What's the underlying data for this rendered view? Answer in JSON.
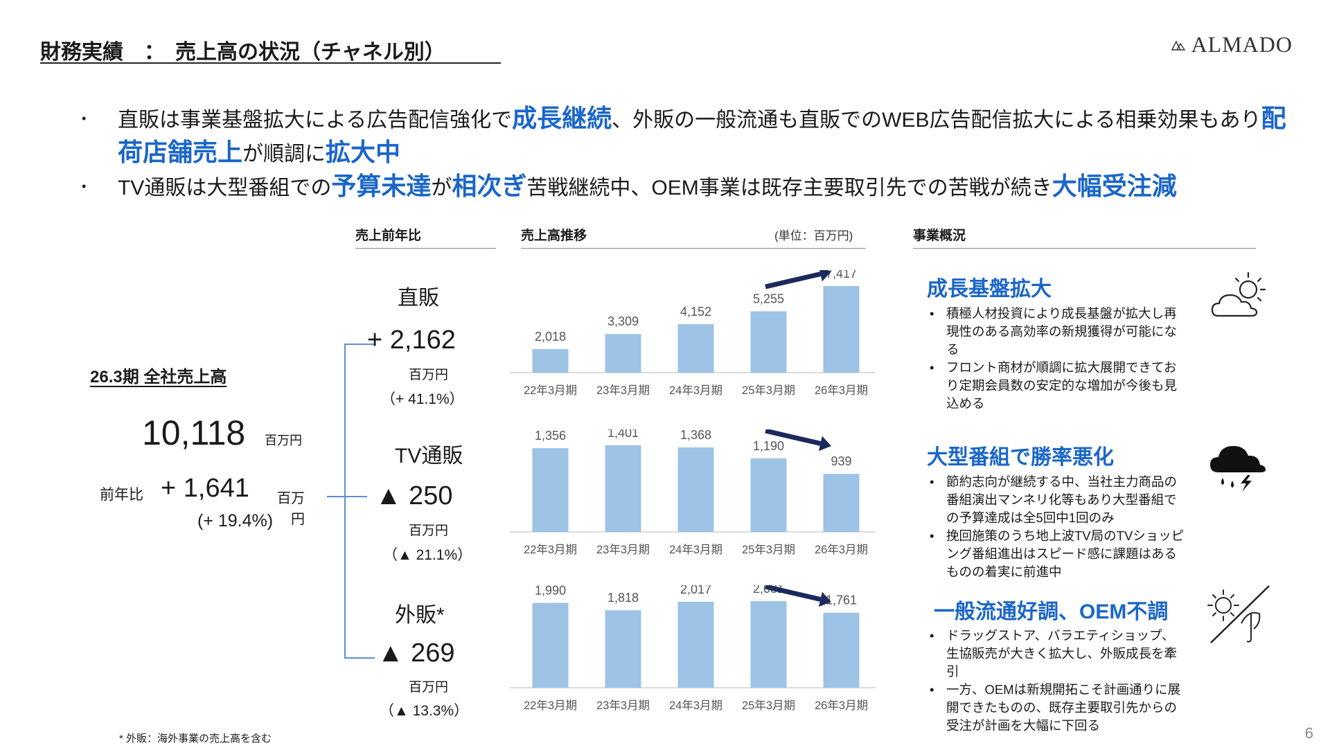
{
  "header": {
    "title": "財務実績　：　売上高の状況（チャネル別）",
    "logo_text": "ALMADO"
  },
  "summary_bullets": [
    [
      {
        "t": "直販は事業基盤拡大による広告配信強化で",
        "hl": false
      },
      {
        "t": "成長継続",
        "hl": true
      },
      {
        "t": "、外販の一般流通も直販でのWEB広告配信拡大による相乗効果もあり",
        "hl": false
      },
      {
        "t": "配荷店舗売上",
        "hl": true
      },
      {
        "t": "が順調に",
        "hl": false
      },
      {
        "t": "拡大中",
        "hl": true
      }
    ],
    [
      {
        "t": "TV通販は大型番組での",
        "hl": false
      },
      {
        "t": "予算未達",
        "hl": true
      },
      {
        "t": "が",
        "hl": false
      },
      {
        "t": "相次ぎ",
        "hl": true
      },
      {
        "t": "苦戦継続中、OEM事業は既存主要取引先での苦戦が続き",
        "hl": false
      },
      {
        "t": "大幅受注減",
        "hl": true
      }
    ]
  ],
  "section_heads": {
    "yoy": "売上前年比",
    "trend": "売上高推移",
    "unit": "(単位：百万円)",
    "business": "事業概況"
  },
  "total": {
    "title": "26.3期  全社売上高",
    "value": "10,118",
    "unit": "百万円",
    "yoy_label": "前年比",
    "yoy_value": "+ 1,641",
    "yoy_unit_a": "百万",
    "yoy_pct": "(+ 19.4%)",
    "yoy_unit_b": "円"
  },
  "channels": [
    {
      "name": "直販",
      "diff": "+ 2,162",
      "unit": "百万円",
      "pct": "（+ 41.1%）"
    },
    {
      "name": "TV通販",
      "diff": "▲ 250",
      "unit": "百万円",
      "pct": "（▲ 21.1%）"
    },
    {
      "name": "外販*",
      "diff": "▲ 269",
      "unit": "百万円",
      "pct": "（▲ 13.3%）"
    }
  ],
  "chart_data": [
    {
      "type": "bar",
      "categories": [
        "22年3月期",
        "23年3月期",
        "24年3月期",
        "25年3月期",
        "26年3月期"
      ],
      "values": [
        2018,
        3309,
        4152,
        5255,
        7417
      ],
      "value_labels": [
        "2,018",
        "3,309",
        "4,152",
        "5,255",
        "7,417"
      ],
      "trend_arrow": "up",
      "bar_color": "#9dc3e6"
    },
    {
      "type": "bar",
      "categories": [
        "22年3月期",
        "23年3月期",
        "24年3月期",
        "25年3月期",
        "26年3月期"
      ],
      "values": [
        1356,
        1401,
        1368,
        1190,
        939
      ],
      "value_labels": [
        "1,356",
        "1,401",
        "1,368",
        "1,190",
        "939"
      ],
      "trend_arrow": "down",
      "bar_color": "#9dc3e6"
    },
    {
      "type": "bar",
      "categories": [
        "22年3月期",
        "23年3月期",
        "24年3月期",
        "25年3月期",
        "26年3月期"
      ],
      "values": [
        1990,
        1818,
        2017,
        2031,
        1761
      ],
      "value_labels": [
        "1,990",
        "1,818",
        "2,017",
        "2,031",
        "1,761"
      ],
      "trend_arrow": "down",
      "bar_color": "#9dc3e6"
    }
  ],
  "business": [
    {
      "title": "成長基盤拡大",
      "icon": "sun-cloud-icon",
      "points": [
        "積極人材投資により成長基盤が拡大し再現性のある高効率の新規獲得が可能になる",
        "フロント商材が順調に拡大展開できており定期会員数の安定的な増加が今後も見込める"
      ]
    },
    {
      "title": "大型番組で勝率悪化",
      "icon": "thunderstorm-icon",
      "points": [
        "節約志向が継続する中、当社主力商品の番組演出マンネリ化等もあり大型番組での予算達成は全5回中1回のみ",
        "挽回施策のうち地上波TV局のTVショッピング番組進出はスピード感に課題はあるものの着実に前進中"
      ]
    },
    {
      "title": "一般流通好調、OEM不調",
      "icon": "sun-umbrella-icon",
      "points": [
        "ドラッグストア、バラエティショップ、生協販売が大きく拡大し、外販成長を牽引",
        "一方、OEMは新規開拓こそ計画通りに展開できたものの、既存主要取引先からの受注が計画を大幅に下回る"
      ]
    }
  ],
  "footnote": "* 外販：海外事業の売上高を含む",
  "page_number": "6",
  "colors": {
    "accent": "#1a66c9",
    "bar": "#9dc3e6",
    "arrow": "#1b2a5c"
  }
}
